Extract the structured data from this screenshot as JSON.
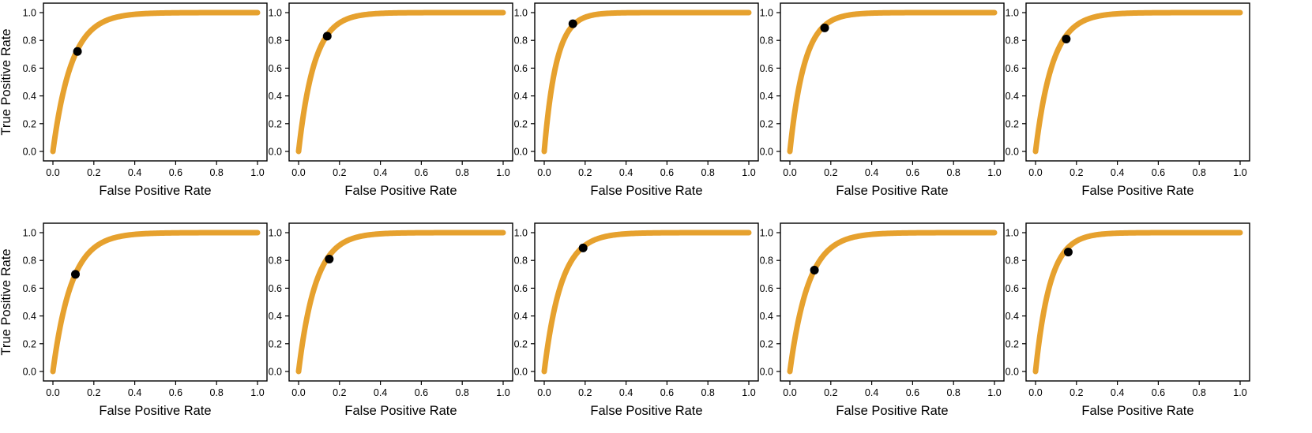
{
  "chart_data": [
    {
      "type": "line",
      "xlabel": "False Positive Rate",
      "ylabel": "True Positive Rate",
      "xlim": [
        0,
        1
      ],
      "ylim": [
        0,
        1
      ],
      "xticks": [
        "0.0",
        "0.2",
        "0.4",
        "0.6",
        "0.8",
        "1.0"
      ],
      "yticks": [
        "0.0",
        "0.2",
        "0.4",
        "0.6",
        "0.8",
        "1.0"
      ],
      "curve_k": 11,
      "color": "#E6A12E",
      "point": {
        "fpr": 0.12,
        "tpr": 0.72
      }
    },
    {
      "type": "line",
      "xlabel": "False Positive Rate",
      "ylabel": "",
      "xlim": [
        0,
        1
      ],
      "ylim": [
        0,
        1
      ],
      "xticks": [
        "0.0",
        "0.2",
        "0.4",
        "0.6",
        "0.8",
        "1.0"
      ],
      "yticks": [
        "0.0",
        "0.2",
        "0.4",
        "0.6",
        "0.8",
        "1.0"
      ],
      "curve_k": 13,
      "color": "#E6A12E",
      "point": {
        "fpr": 0.14,
        "tpr": 0.83
      }
    },
    {
      "type": "line",
      "xlabel": "False Positive Rate",
      "ylabel": "",
      "xlim": [
        0,
        1
      ],
      "ylim": [
        0,
        1
      ],
      "xticks": [
        "0.0",
        "0.2",
        "0.4",
        "0.6",
        "0.8",
        "1.0"
      ],
      "yticks": [
        "0.0",
        "0.2",
        "0.4",
        "0.6",
        "0.8",
        "1.0"
      ],
      "curve_k": 17,
      "color": "#E6A12E",
      "point": {
        "fpr": 0.14,
        "tpr": 0.92
      }
    },
    {
      "type": "line",
      "xlabel": "False Positive Rate",
      "ylabel": "",
      "xlim": [
        0,
        1
      ],
      "ylim": [
        0,
        1
      ],
      "xticks": [
        "0.0",
        "0.2",
        "0.4",
        "0.6",
        "0.8",
        "1.0"
      ],
      "yticks": [
        "0.0",
        "0.2",
        "0.4",
        "0.6",
        "0.8",
        "1.0"
      ],
      "curve_k": 14,
      "color": "#E6A12E",
      "point": {
        "fpr": 0.17,
        "tpr": 0.89
      }
    },
    {
      "type": "line",
      "xlabel": "False Positive Rate",
      "ylabel": "",
      "xlim": [
        0,
        1
      ],
      "ylim": [
        0,
        1
      ],
      "xticks": [
        "0.0",
        "0.2",
        "0.4",
        "0.6",
        "0.8",
        "1.0"
      ],
      "yticks": [
        "0.0",
        "0.2",
        "0.4",
        "0.6",
        "0.8",
        "1.0"
      ],
      "curve_k": 12,
      "color": "#E6A12E",
      "point": {
        "fpr": 0.15,
        "tpr": 0.81
      }
    },
    {
      "type": "line",
      "xlabel": "False Positive Rate",
      "ylabel": "True Positive Rate",
      "xlim": [
        0,
        1
      ],
      "ylim": [
        0,
        1
      ],
      "xticks": [
        "0.0",
        "0.2",
        "0.4",
        "0.6",
        "0.8",
        "1.0"
      ],
      "yticks": [
        "0.0",
        "0.2",
        "0.4",
        "0.6",
        "0.8",
        "1.0"
      ],
      "curve_k": 11,
      "color": "#E6A12E",
      "point": {
        "fpr": 0.11,
        "tpr": 0.7
      }
    },
    {
      "type": "line",
      "xlabel": "False Positive Rate",
      "ylabel": "",
      "xlim": [
        0,
        1
      ],
      "ylim": [
        0,
        1
      ],
      "xticks": [
        "0.0",
        "0.2",
        "0.4",
        "0.6",
        "0.8",
        "1.0"
      ],
      "yticks": [
        "0.0",
        "0.2",
        "0.4",
        "0.6",
        "0.8",
        "1.0"
      ],
      "curve_k": 12,
      "color": "#E6A12E",
      "point": {
        "fpr": 0.15,
        "tpr": 0.81
      }
    },
    {
      "type": "line",
      "xlabel": "False Positive Rate",
      "ylabel": "",
      "xlim": [
        0,
        1
      ],
      "ylim": [
        0,
        1
      ],
      "xticks": [
        "0.0",
        "0.2",
        "0.4",
        "0.6",
        "0.8",
        "1.0"
      ],
      "yticks": [
        "0.0",
        "0.2",
        "0.4",
        "0.6",
        "0.8",
        "1.0"
      ],
      "curve_k": 12,
      "color": "#E6A12E",
      "point": {
        "fpr": 0.19,
        "tpr": 0.89
      }
    },
    {
      "type": "line",
      "xlabel": "False Positive Rate",
      "ylabel": "",
      "xlim": [
        0,
        1
      ],
      "ylim": [
        0,
        1
      ],
      "xticks": [
        "0.0",
        "0.2",
        "0.4",
        "0.6",
        "0.8",
        "1.0"
      ],
      "yticks": [
        "0.0",
        "0.2",
        "0.4",
        "0.6",
        "0.8",
        "1.0"
      ],
      "curve_k": 11,
      "color": "#E6A12E",
      "point": {
        "fpr": 0.12,
        "tpr": 0.73
      }
    },
    {
      "type": "line",
      "xlabel": "False Positive Rate",
      "ylabel": "",
      "xlim": [
        0,
        1
      ],
      "ylim": [
        0,
        1
      ],
      "xticks": [
        "0.0",
        "0.2",
        "0.4",
        "0.6",
        "0.8",
        "1.0"
      ],
      "yticks": [
        "0.0",
        "0.2",
        "0.4",
        "0.6",
        "0.8",
        "1.0"
      ],
      "curve_k": 14,
      "color": "#E6A12E",
      "point": {
        "fpr": 0.16,
        "tpr": 0.86
      }
    }
  ]
}
